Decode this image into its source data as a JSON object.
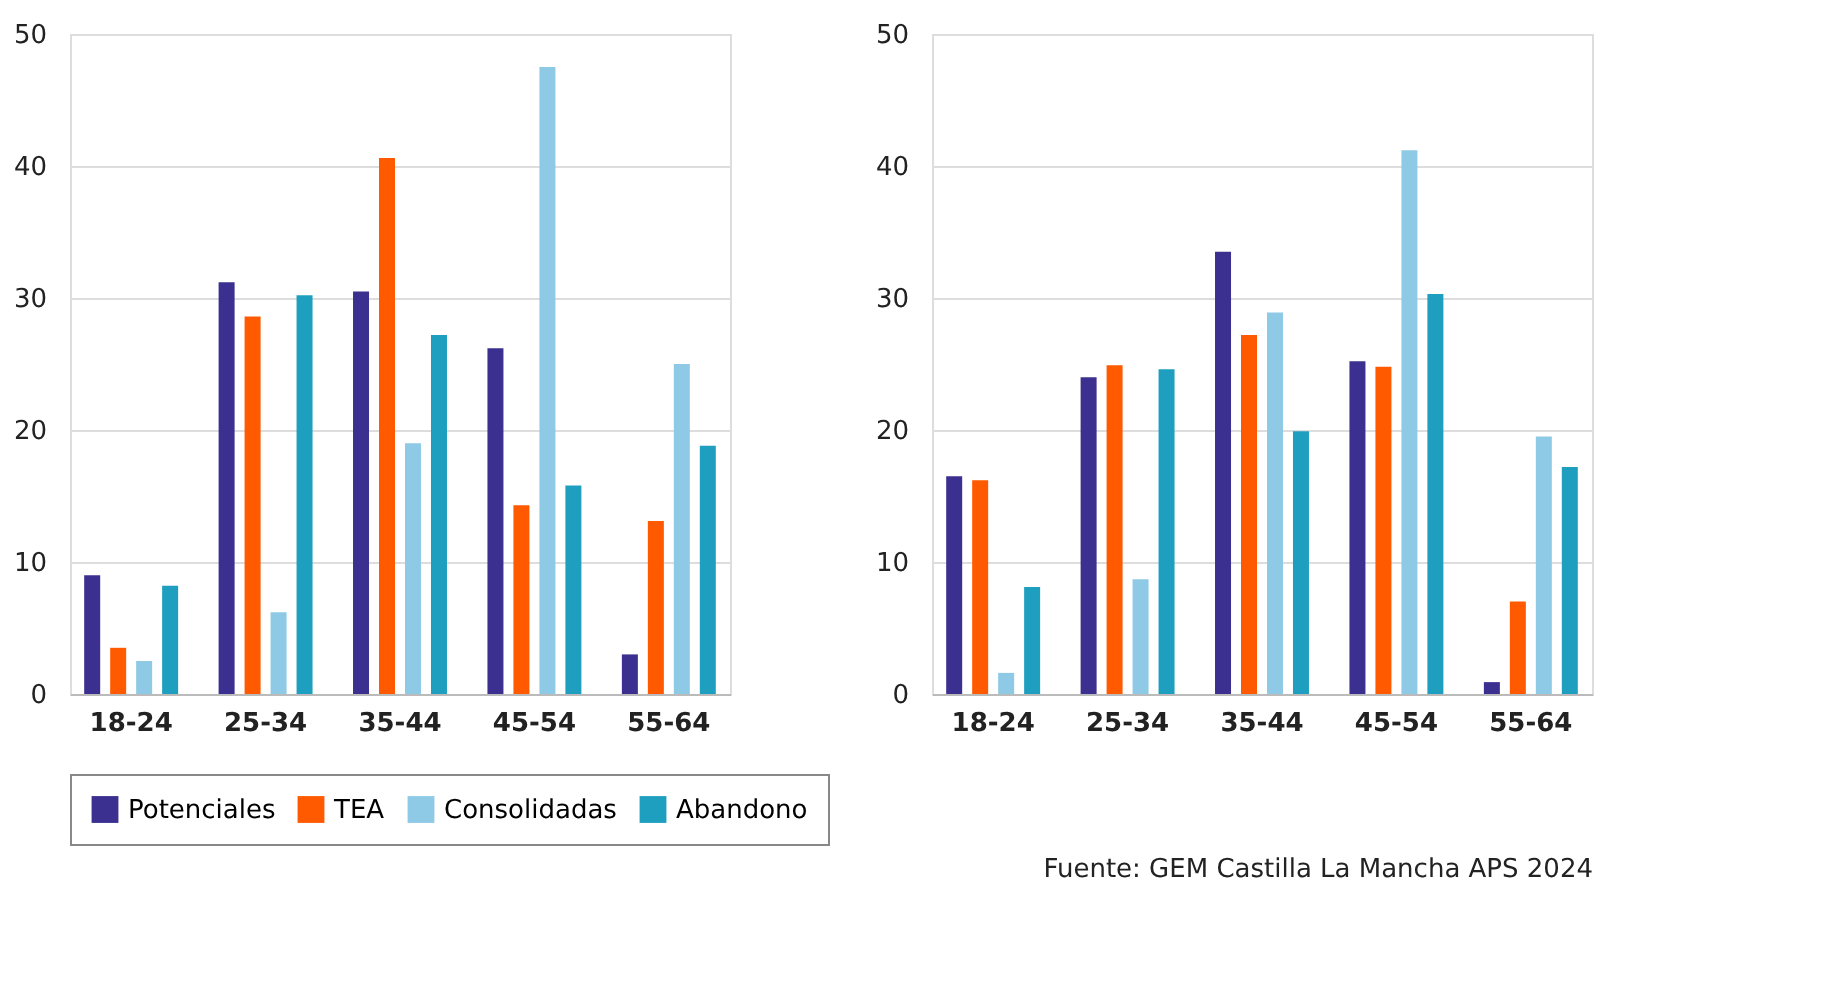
{
  "chart_data": [
    {
      "type": "bar",
      "categories": [
        "18-24",
        "25-34",
        "35-44",
        "45-54",
        "55-64"
      ],
      "ylim": [
        0,
        50
      ],
      "yticks": [
        0,
        10,
        20,
        30,
        40,
        50
      ],
      "grid": "y",
      "legend": "bottom right",
      "series": [
        {
          "name": "Potenciales",
          "color": "#3b2f8f",
          "values": [
            9,
            31.2,
            30.5,
            26.2,
            3
          ]
        },
        {
          "name": "TEA",
          "color": "#ff5a00",
          "values": [
            3.5,
            28.6,
            40.6,
            14.3,
            13.1
          ]
        },
        {
          "name": "Consolidadas",
          "color": "#8ecae6",
          "values": [
            2.5,
            6.2,
            19,
            47.5,
            25
          ]
        },
        {
          "name": "Abandono",
          "color": "#1f9fbf",
          "values": [
            8.2,
            30.2,
            27.2,
            15.8,
            18.8
          ]
        }
      ]
    },
    {
      "type": "bar",
      "categories": [
        "18-24",
        "25-34",
        "35-44",
        "45-54",
        "55-64"
      ],
      "ylim": [
        0,
        50
      ],
      "yticks": [
        0,
        10,
        20,
        30,
        40,
        50
      ],
      "grid": "y",
      "legend": "bottom right",
      "annotations": [
        "Fuente: GEM Castilla La Mancha APS 2024"
      ],
      "series": [
        {
          "name": "Potenciales",
          "color": "#3b2f8f",
          "values": [
            16.5,
            24,
            33.5,
            25.2,
            0.9
          ]
        },
        {
          "name": "TEA",
          "color": "#ff5a00",
          "values": [
            16.2,
            24.9,
            27.2,
            24.8,
            7
          ]
        },
        {
          "name": "Consolidadas",
          "color": "#8ecae6",
          "values": [
            1.6,
            8.7,
            28.9,
            41.2,
            19.5
          ]
        },
        {
          "name": "Abandono",
          "color": "#1f9fbf",
          "values": [
            8.1,
            24.6,
            19.9,
            30.3,
            17.2
          ]
        }
      ]
    }
  ]
}
